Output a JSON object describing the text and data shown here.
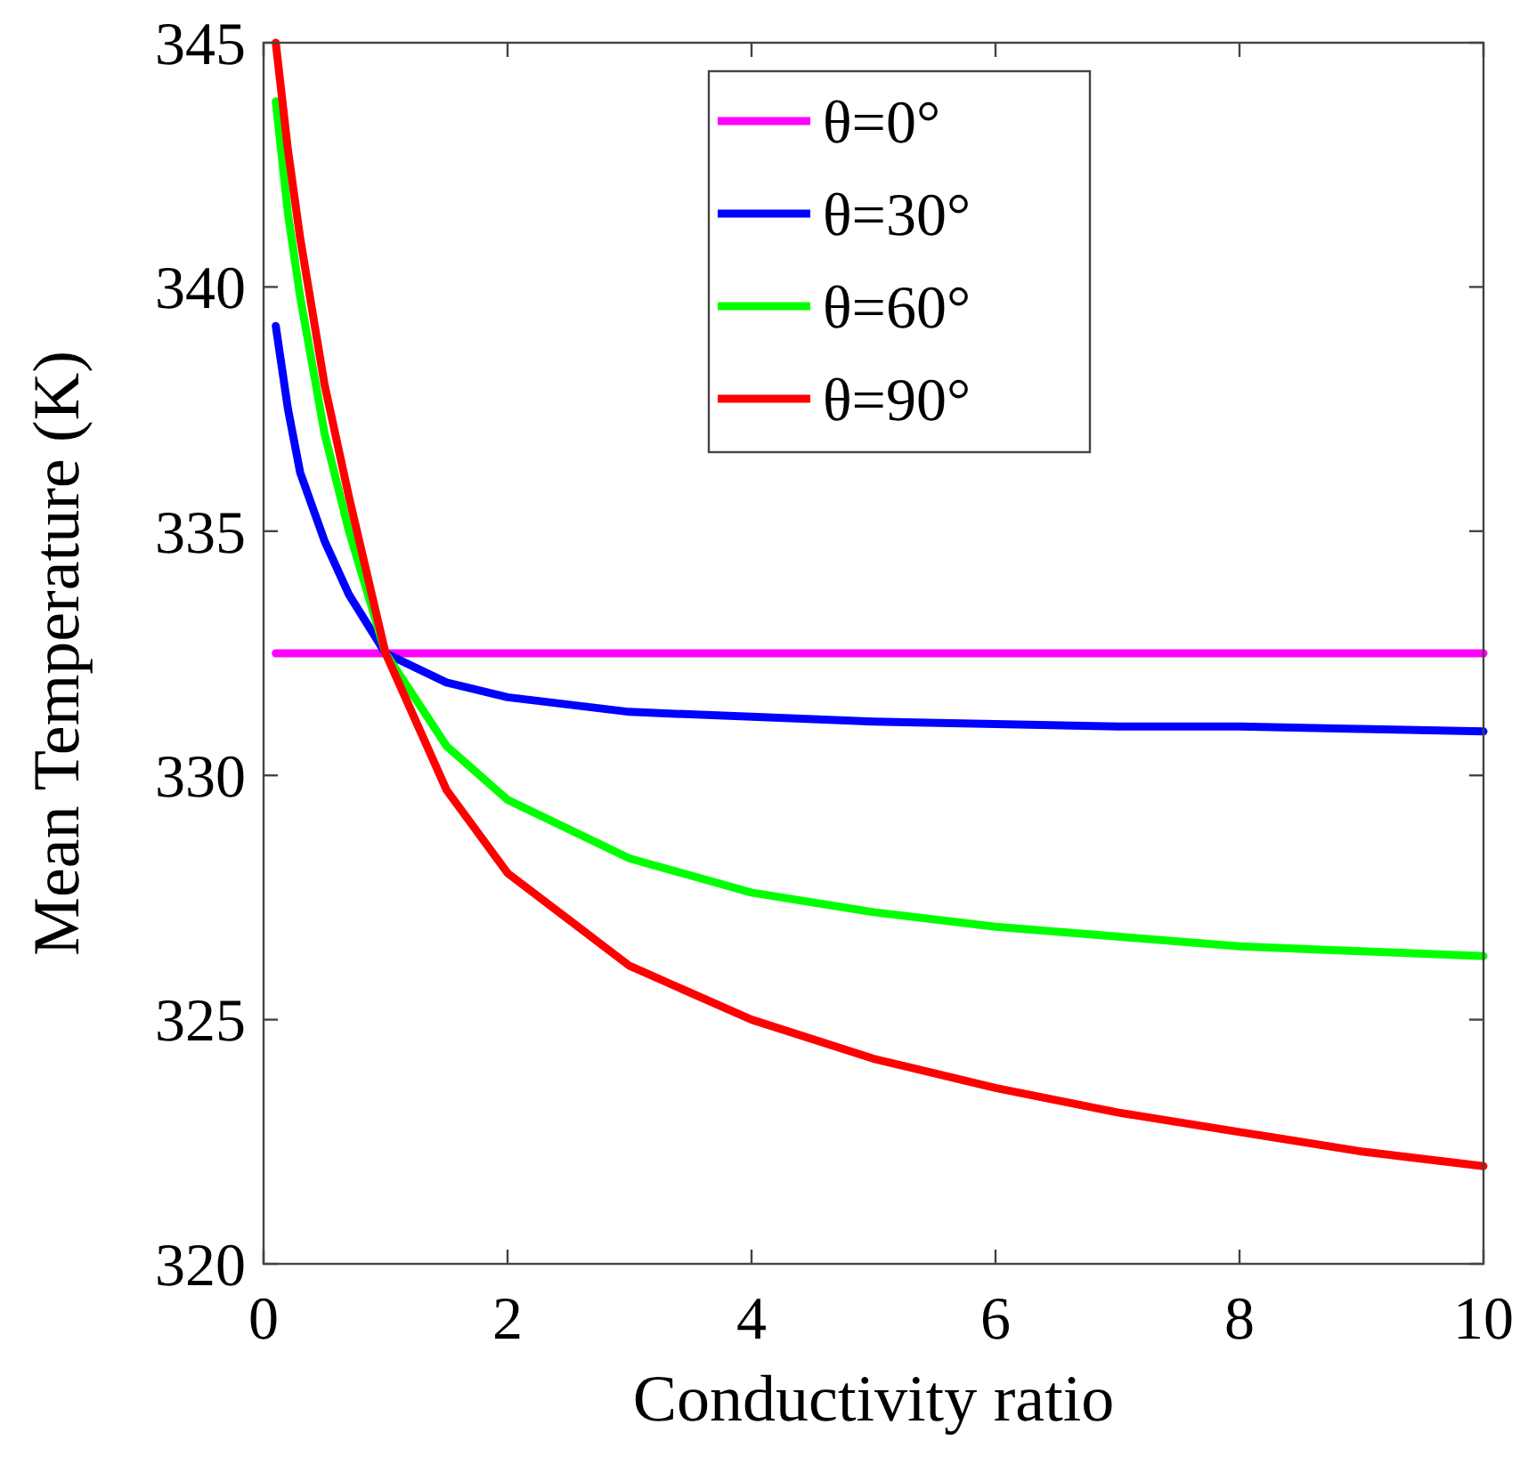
{
  "chart_data": {
    "type": "line",
    "xlabel": "Conductivity ratio",
    "ylabel": "Mean Temperature (K)",
    "xlim": [
      0,
      10
    ],
    "xticks": [
      0,
      2,
      4,
      6,
      8,
      10
    ],
    "ylim": [
      320,
      345
    ],
    "yticks": [
      320,
      325,
      330,
      335,
      340,
      345
    ],
    "x": [
      0.1,
      0.2,
      0.3,
      0.5,
      0.7,
      1,
      1.5,
      2,
      3,
      4,
      5,
      6,
      7,
      8,
      9,
      10
    ],
    "legend": "top right",
    "grid": false,
    "line_style": "solid",
    "marker": "none",
    "series": [
      {
        "name": "θ=0°",
        "color": "#ff00ff",
        "values": [
          332.5,
          332.5,
          332.5,
          332.5,
          332.5,
          332.5,
          332.5,
          332.5,
          332.5,
          332.5,
          332.5,
          332.5,
          332.5,
          332.5,
          332.5,
          332.5
        ]
      },
      {
        "name": "θ=30°",
        "color": "#0000ff",
        "values": [
          339.2,
          337.5,
          336.2,
          334.8,
          333.7,
          332.5,
          331.9,
          331.6,
          331.3,
          331.2,
          331.1,
          331.05,
          331.0,
          331.0,
          330.95,
          330.9
        ]
      },
      {
        "name": "θ=60°",
        "color": "#00ff00",
        "values": [
          343.8,
          341.5,
          339.8,
          337,
          335,
          332.5,
          330.6,
          329.5,
          328.3,
          327.6,
          327.2,
          326.9,
          326.7,
          326.5,
          326.4,
          326.3
        ]
      },
      {
        "name": "θ=90°",
        "color": "#ff0000",
        "values": [
          345,
          342.8,
          341,
          338,
          335.7,
          332.5,
          329.7,
          328.0,
          326.1,
          325.0,
          324.2,
          323.6,
          323.1,
          322.7,
          322.3,
          322.0
        ]
      }
    ]
  }
}
